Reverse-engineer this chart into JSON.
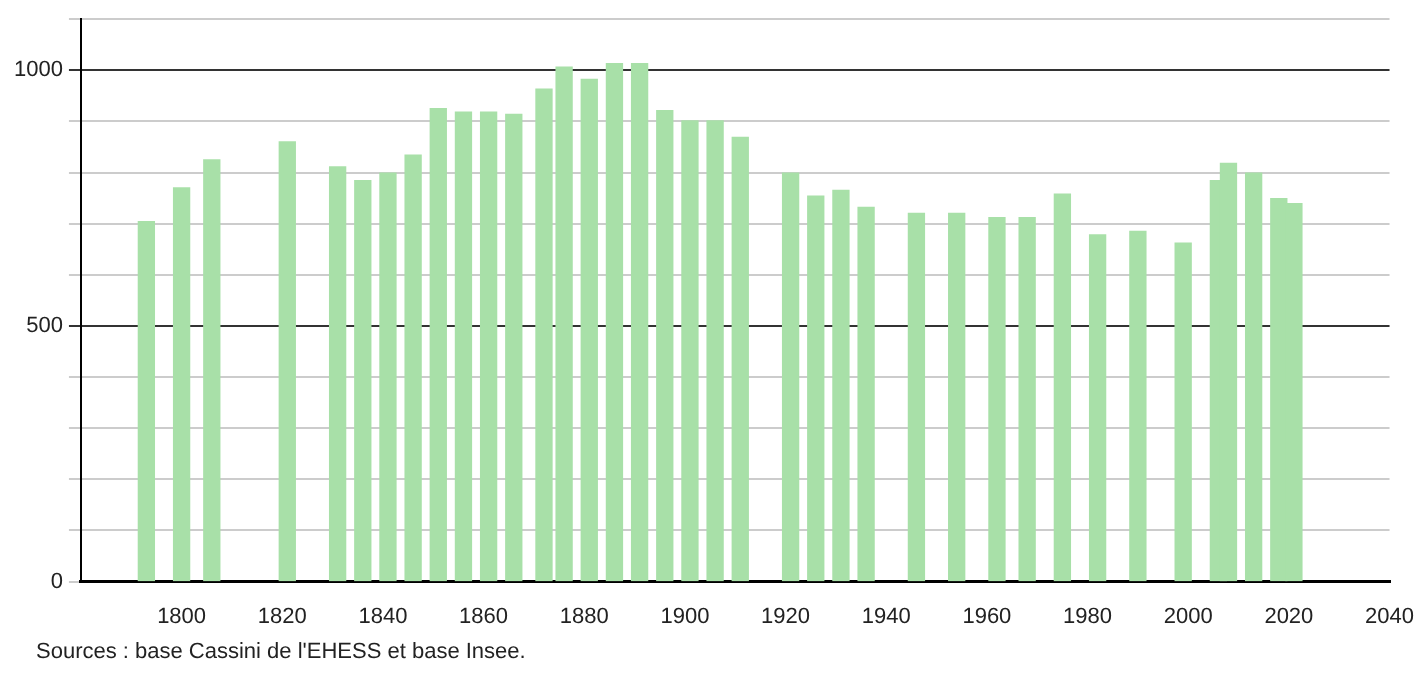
{
  "chart_data": {
    "type": "bar",
    "x": [
      1793,
      1800,
      1806,
      1821,
      1831,
      1836,
      1841,
      1846,
      1851,
      1856,
      1861,
      1866,
      1872,
      1876,
      1881,
      1886,
      1891,
      1896,
      1901,
      1906,
      1911,
      1921,
      1926,
      1931,
      1936,
      1946,
      1954,
      1962,
      1968,
      1975,
      1982,
      1990,
      1999,
      2006,
      2008,
      2013,
      2018,
      2021
    ],
    "values": [
      704,
      770,
      825,
      860,
      811,
      784,
      799,
      834,
      925,
      918,
      918,
      914,
      963,
      1006,
      982,
      1013,
      1013,
      921,
      901,
      901,
      869,
      799,
      754,
      765,
      732,
      720,
      720,
      712,
      712,
      758,
      678,
      685,
      662,
      784,
      818,
      799,
      749,
      739
    ],
    "color": "#a8e0a8",
    "xlim": [
      1780,
      2040
    ],
    "xticks": [
      1800,
      1820,
      1840,
      1860,
      1880,
      1900,
      1920,
      1940,
      1960,
      1980,
      2000,
      2020,
      2040
    ],
    "ylim": [
      0,
      1100
    ],
    "yticks": [
      0,
      {
        "value": 100,
        "label": null
      },
      {
        "value": 200,
        "label": null
      },
      {
        "value": 300,
        "label": null
      },
      {
        "value": 400,
        "label": null
      },
      500,
      {
        "value": 600,
        "label": null
      },
      {
        "value": 700,
        "label": null
      },
      {
        "value": 800,
        "label": null
      },
      {
        "value": 900,
        "label": null
      },
      1000,
      {
        "value": 1100,
        "label": null
      }
    ],
    "grid": "y",
    "annotations": [
      "Sources : base Cassini de l'EHESS et base Insee."
    ]
  }
}
